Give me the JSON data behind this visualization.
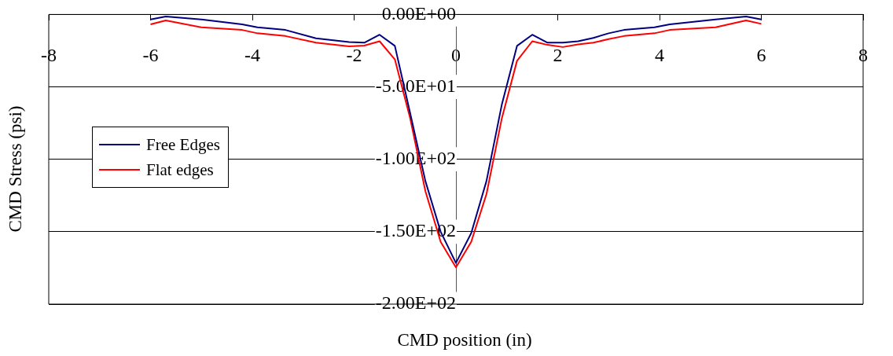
{
  "chart_data": {
    "type": "line",
    "xlabel": "CMD position (in)",
    "ylabel": "CMD Stress (psi)",
    "x": [
      -6,
      -5.7,
      -5,
      -4.2,
      -3.9,
      -3.35,
      -2.75,
      -2.1,
      -1.8,
      -1.5,
      -1.2,
      -0.9,
      -0.6,
      -0.3,
      0,
      0.3,
      0.6,
      0.9,
      1.2,
      1.5,
      1.8,
      2.1,
      2.4,
      2.7,
      3,
      3.3,
      3.9,
      4.2,
      5.1,
      5.7,
      6
    ],
    "series": [
      {
        "name": "Free Edges",
        "color": "#000080",
        "values": [
          -3.5,
          -1.4,
          -3.5,
          -6.8,
          -8.9,
          -10.7,
          -16.5,
          -19,
          -19.5,
          -14,
          -21.7,
          -68,
          -115,
          -150,
          -171.6,
          -151,
          -115,
          -62.5,
          -21.7,
          -14,
          -19.5,
          -19.5,
          -18.5,
          -16.2,
          -13,
          -10.7,
          -8.9,
          -6.8,
          -3.5,
          -1.4,
          -3.5
        ]
      },
      {
        "name": "Flat edges",
        "color": "#ff0000",
        "values": [
          -6.8,
          -4.1,
          -8.9,
          -10.7,
          -13,
          -14.9,
          -19.5,
          -22,
          -21.5,
          -18.5,
          -31,
          -71.6,
          -122,
          -157,
          -174.6,
          -157,
          -124,
          -72,
          -32,
          -18.5,
          -21,
          -22.5,
          -20.7,
          -19.5,
          -17,
          -14.9,
          -13,
          -10.7,
          -8.9,
          -4.1,
          -6.5
        ]
      }
    ],
    "xlim": [
      -8,
      8
    ],
    "xticks": [
      -8,
      -6,
      -4,
      -2,
      0,
      2,
      4,
      6,
      8
    ],
    "ylim": [
      -200,
      0
    ],
    "yticks": [
      {
        "value": -200,
        "label": "-2.00E+02"
      },
      {
        "value": -150,
        "label": "-1.50E+02"
      },
      {
        "value": -100,
        "label": "-1.00E+02"
      },
      {
        "value": -50,
        "label": "-5.00E+01"
      },
      {
        "value": 0,
        "label": "0.00E+00"
      }
    ],
    "grid": "y",
    "legend": "left",
    "marker": "none",
    "line_style": "solid"
  }
}
